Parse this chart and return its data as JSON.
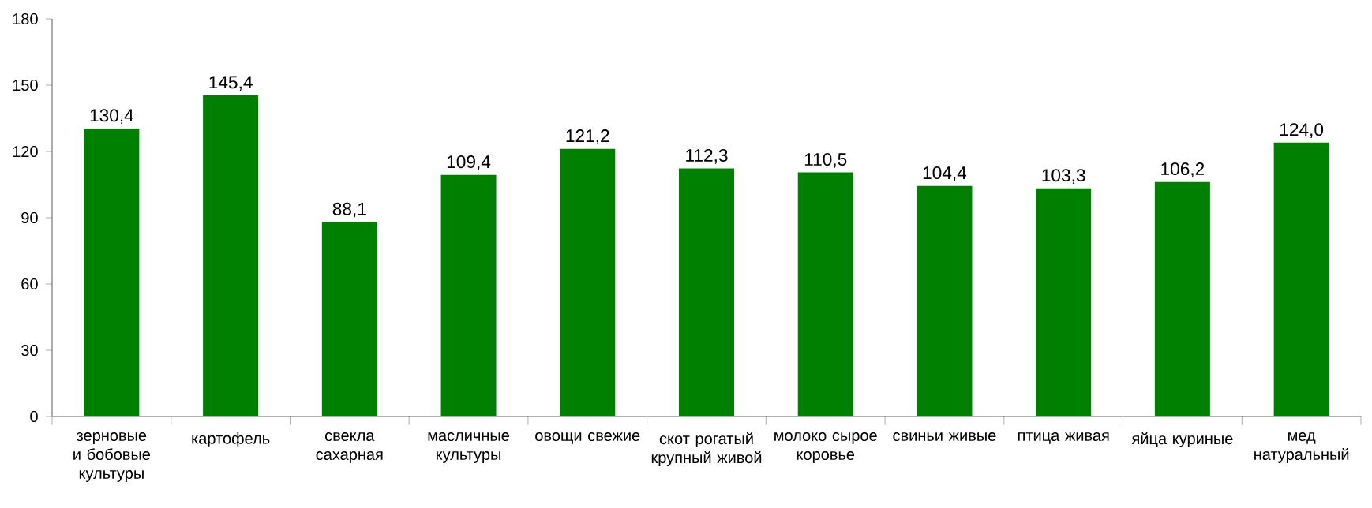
{
  "chart_data": {
    "type": "bar",
    "categories": [
      "зерновые и бобовые культуры",
      "картофель",
      "свекла сахарная",
      "масличные культуры",
      "овощи свежие",
      "скот рогатый крупный живой",
      "молоко сырое коровье",
      "свиньи живые",
      "птица живая",
      "яйца куриные",
      "мед натуральный"
    ],
    "values": [
      130.4,
      145.4,
      88.1,
      109.4,
      121.2,
      112.3,
      110.5,
      104.4,
      103.3,
      106.2,
      124.0
    ],
    "value_labels": [
      "130,4",
      "145,4",
      "88,1",
      "109,4",
      "121,2",
      "112,3",
      "110,5",
      "104,4",
      "103,3",
      "106,2",
      "124,0"
    ],
    "color": "#008000",
    "ylim": [
      0,
      180
    ],
    "yticks": [
      0,
      30,
      60,
      90,
      120,
      150,
      180
    ],
    "grid": false
  }
}
